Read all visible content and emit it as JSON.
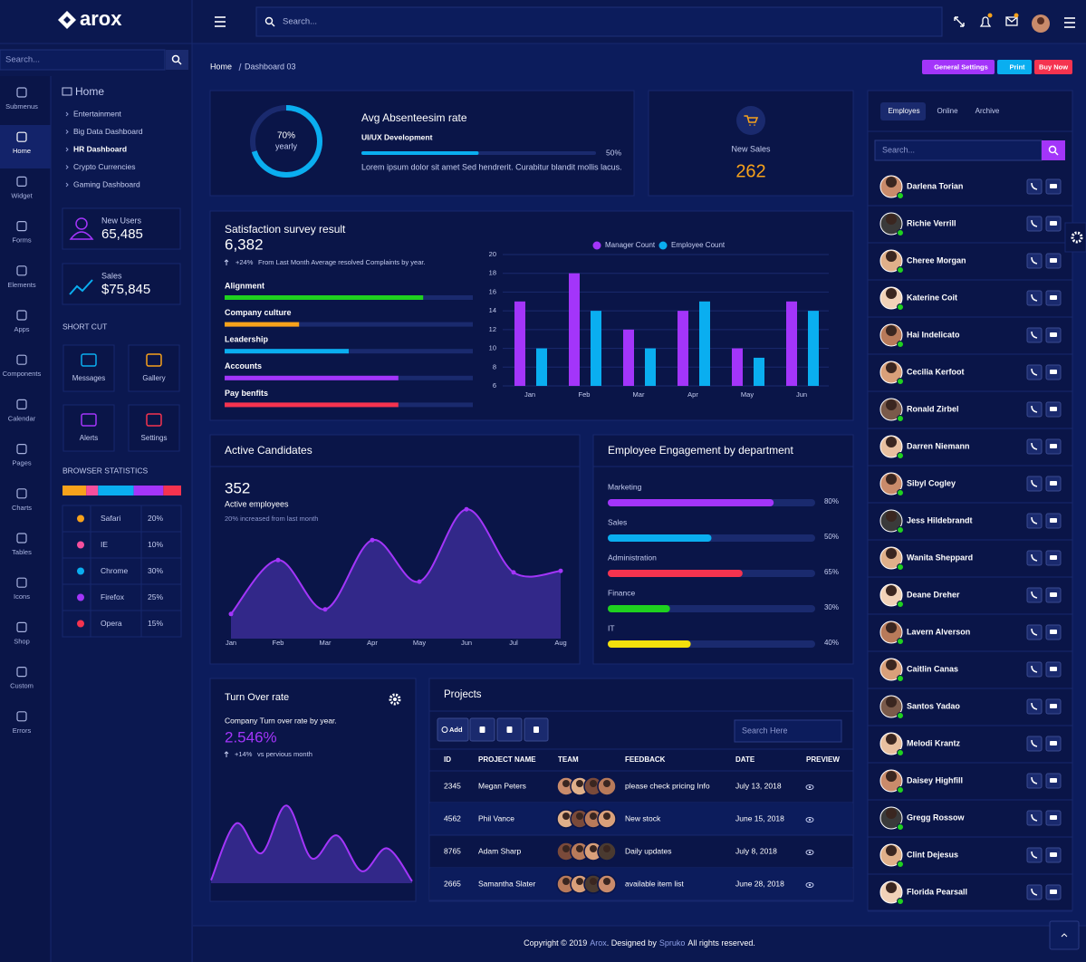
{
  "brand": "arox",
  "sidebar": {
    "search": "Search...",
    "nav": [
      "Submenus",
      "Home",
      "Widget",
      "Forms",
      "Elements",
      "Apps",
      "Components",
      "Calendar",
      "Pages",
      "Charts",
      "Tables",
      "Icons",
      "Shop",
      "Custom",
      "Errors"
    ],
    "menu_title": "Home",
    "menu": [
      "Entertainment",
      "Big Data Dashboard",
      "HR Dashboard",
      "Crypto Currencies",
      "Gaming Dashboard"
    ],
    "stats": [
      {
        "label": "New Users",
        "value": "65,485"
      },
      {
        "label": "Sales",
        "value": "$75,845"
      }
    ],
    "shortcut_title": "SHORT CUT",
    "shortcuts": [
      "Messages",
      "Gallery",
      "Alerts",
      "Settings"
    ]
  },
  "header": {
    "search": "Search...",
    "breadcrumb": [
      "Home",
      "Dashboard 03"
    ],
    "buttons": [
      "General Settings",
      "Print",
      "Buy Now"
    ]
  },
  "absenteeism": {
    "gauge": {
      "value": 70,
      "label": "70%"
    },
    "gauge_caption": "yearly",
    "title": "Avg Absenteesim rate",
    "subtitle": "UI/UX Development",
    "progress": {
      "value": 50,
      "label": "50%"
    },
    "text": "Lorem ipsum dolor sit amet Sed hendrerit. Curabitur blandit mollis lacus."
  },
  "new_sales": {
    "label": "New Sales",
    "value": "262"
  },
  "satisfaction": {
    "title": "Satisfaction survey result",
    "value": "6,382",
    "change": "+24%",
    "note": "From Last Month Average resolved Complaints by year.",
    "bars": [
      {
        "label": "Alignment",
        "value": 80,
        "color": "#1fd11f"
      },
      {
        "label": "Company culture",
        "value": 30,
        "color": "#f7a21b"
      },
      {
        "label": "Leadership",
        "value": 50,
        "color": "#0aaef0"
      },
      {
        "label": "Accounts",
        "value": 70,
        "color": "#a335fa"
      },
      {
        "label": "Pay benfits",
        "value": 70,
        "color": "#f5334f"
      }
    ]
  },
  "candidates": {
    "title": "Active Candidates",
    "value": "352",
    "label": "Active employees",
    "note": "20% increased from last month"
  },
  "engagement": {
    "title": "Employee Engagement by department",
    "bars": [
      {
        "label": "Marketing",
        "value": 80,
        "value_label": "80%",
        "color": "#a335fa"
      },
      {
        "label": "Sales",
        "value": 50,
        "value_label": "50%",
        "color": "#0aaef0"
      },
      {
        "label": "Administration",
        "value": 65,
        "value_label": "65%",
        "color": "#f5334f"
      },
      {
        "label": "Finance",
        "value": 30,
        "value_label": "30%",
        "color": "#1fd11f"
      },
      {
        "label": "IT",
        "value": 40,
        "value_label": "40%",
        "color": "#f4e00c"
      }
    ]
  },
  "turnover": {
    "title": "Turn Over rate",
    "subtitle": "Company Turn over rate by year.",
    "value": "2.546%",
    "change": "+14%",
    "change_note": "vs pervious month"
  },
  "projects": {
    "title": "Projects",
    "add": "Add",
    "search": "Search Here",
    "headers": [
      "ID",
      "PROJECT NAME",
      "TEAM",
      "FEEDBACK",
      "DATE",
      "PREVIEW"
    ],
    "rows": [
      [
        "2345",
        "Megan Peters",
        "please check pricing Info",
        "July 13, 2018"
      ],
      [
        "4562",
        "Phil Vance",
        "New stock",
        "June 15, 2018"
      ],
      [
        "8765",
        "Adam Sharp",
        "Daily updates",
        "July 8, 2018"
      ],
      [
        "2665",
        "Samantha Slater",
        "available item list",
        "June 28, 2018"
      ]
    ]
  },
  "contacts": {
    "tabs": [
      "Employes",
      "Online",
      "Archive"
    ],
    "search": "Search...",
    "people": [
      "Darlena Torian",
      "Richie Verrill",
      "Cheree Morgan",
      "Katerine Coit",
      "Hai Indelicato",
      "Cecilia Kerfoot",
      "Ronald Zirbel",
      "Darren Niemann",
      "Sibyl Cogley",
      "Jess Hildebrandt",
      "Wanita Sheppard",
      "Deane Dreher",
      "Lavern Alverson",
      "Caitlin Canas",
      "Santos Yadao",
      "Melodi Krantz",
      "Daisey Highfill",
      "Gregg Rossow",
      "Clint Dejesus",
      "Florida Pearsall"
    ]
  },
  "footer": [
    "Copyright © 2019",
    "Arox",
    ". Designed by",
    "Spruko",
    "All rights reserved."
  ],
  "chart_data": [
    {
      "type": "stacked-bar",
      "title": "BROWSER STATISTICS",
      "categories": [
        "Safari",
        "IE",
        "Chrome",
        "Firefox",
        "Opera"
      ],
      "values": [
        20,
        10,
        30,
        25,
        15
      ],
      "value_labels": [
        "20%",
        "10%",
        "30%",
        "25%",
        "15%"
      ],
      "colors": [
        "#f7a21b",
        "#f74f9d",
        "#0aaef0",
        "#a335fa",
        "#f5334f"
      ]
    },
    {
      "type": "bar",
      "categories": [
        "Jan",
        "Feb",
        "Mar",
        "Apr",
        "May",
        "Jun"
      ],
      "series": [
        {
          "name": "Manager Count",
          "color": "#a335fa",
          "values": [
            15,
            18,
            12,
            14,
            10,
            15
          ]
        },
        {
          "name": "Employee Count",
          "color": "#0aaef0",
          "values": [
            10,
            14,
            10,
            15,
            9,
            14
          ]
        }
      ],
      "ylim": [
        6,
        20
      ],
      "yticks": [
        6,
        8,
        10,
        12,
        14,
        16,
        18,
        20
      ],
      "grid": true,
      "legend": "top"
    },
    {
      "type": "area",
      "categories": [
        "Jan",
        "Feb",
        "Mar",
        "Apr",
        "May",
        "Jun",
        "Jul",
        "Aug"
      ],
      "values": [
        16,
        51,
        19,
        64,
        37,
        84,
        43,
        44
      ],
      "ylim": [
        0,
        100
      ],
      "color": "#a335fa",
      "area_color": "#3a2c95",
      "markers": true
    },
    {
      "type": "area",
      "categories": [
        null,
        null,
        null,
        null,
        null,
        null,
        null,
        null,
        null
      ],
      "values": [
        3,
        60,
        30,
        78,
        25,
        48,
        12,
        35,
        2
      ],
      "ylim": [
        0,
        100
      ],
      "color": "#a335fa",
      "area_color": "#3a2c95",
      "markers": false
    }
  ]
}
